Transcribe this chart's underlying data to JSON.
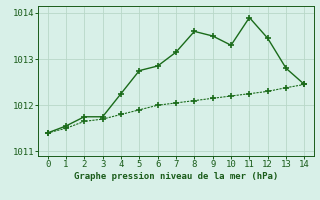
{
  "line1_x": [
    0,
    1,
    2,
    3,
    4,
    5,
    6,
    7,
    8,
    9,
    10,
    11,
    12,
    13,
    14
  ],
  "line1_y": [
    1011.4,
    1011.55,
    1011.75,
    1011.75,
    1012.25,
    1012.75,
    1012.85,
    1013.15,
    1013.6,
    1013.5,
    1013.3,
    1013.9,
    1013.45,
    1012.8,
    1012.45
  ],
  "line2_x": [
    0,
    1,
    2,
    3,
    4,
    5,
    6,
    7,
    8,
    9,
    10,
    11,
    12,
    13,
    14
  ],
  "line2_y": [
    1011.4,
    1011.5,
    1011.65,
    1011.7,
    1011.8,
    1011.9,
    1012.0,
    1012.05,
    1012.1,
    1012.15,
    1012.2,
    1012.25,
    1012.3,
    1012.38,
    1012.45
  ],
  "line_color": "#1a6b1a",
  "bg_color": "#d8f0e8",
  "grid_color": "#b8d8c8",
  "xlabel": "Graphe pression niveau de la mer (hPa)",
  "xlim": [
    -0.5,
    14.5
  ],
  "ylim": [
    1010.9,
    1014.15
  ],
  "yticks": [
    1011,
    1012,
    1013,
    1014
  ],
  "xticks": [
    0,
    1,
    2,
    3,
    4,
    5,
    6,
    7,
    8,
    9,
    10,
    11,
    12,
    13,
    14
  ],
  "marker": "+",
  "markersize": 4,
  "linewidth1": 1.0,
  "linewidth2": 0.8,
  "xlabel_fontsize": 6.5,
  "tick_fontsize": 6.5,
  "tick_color": "#1a5c1a"
}
